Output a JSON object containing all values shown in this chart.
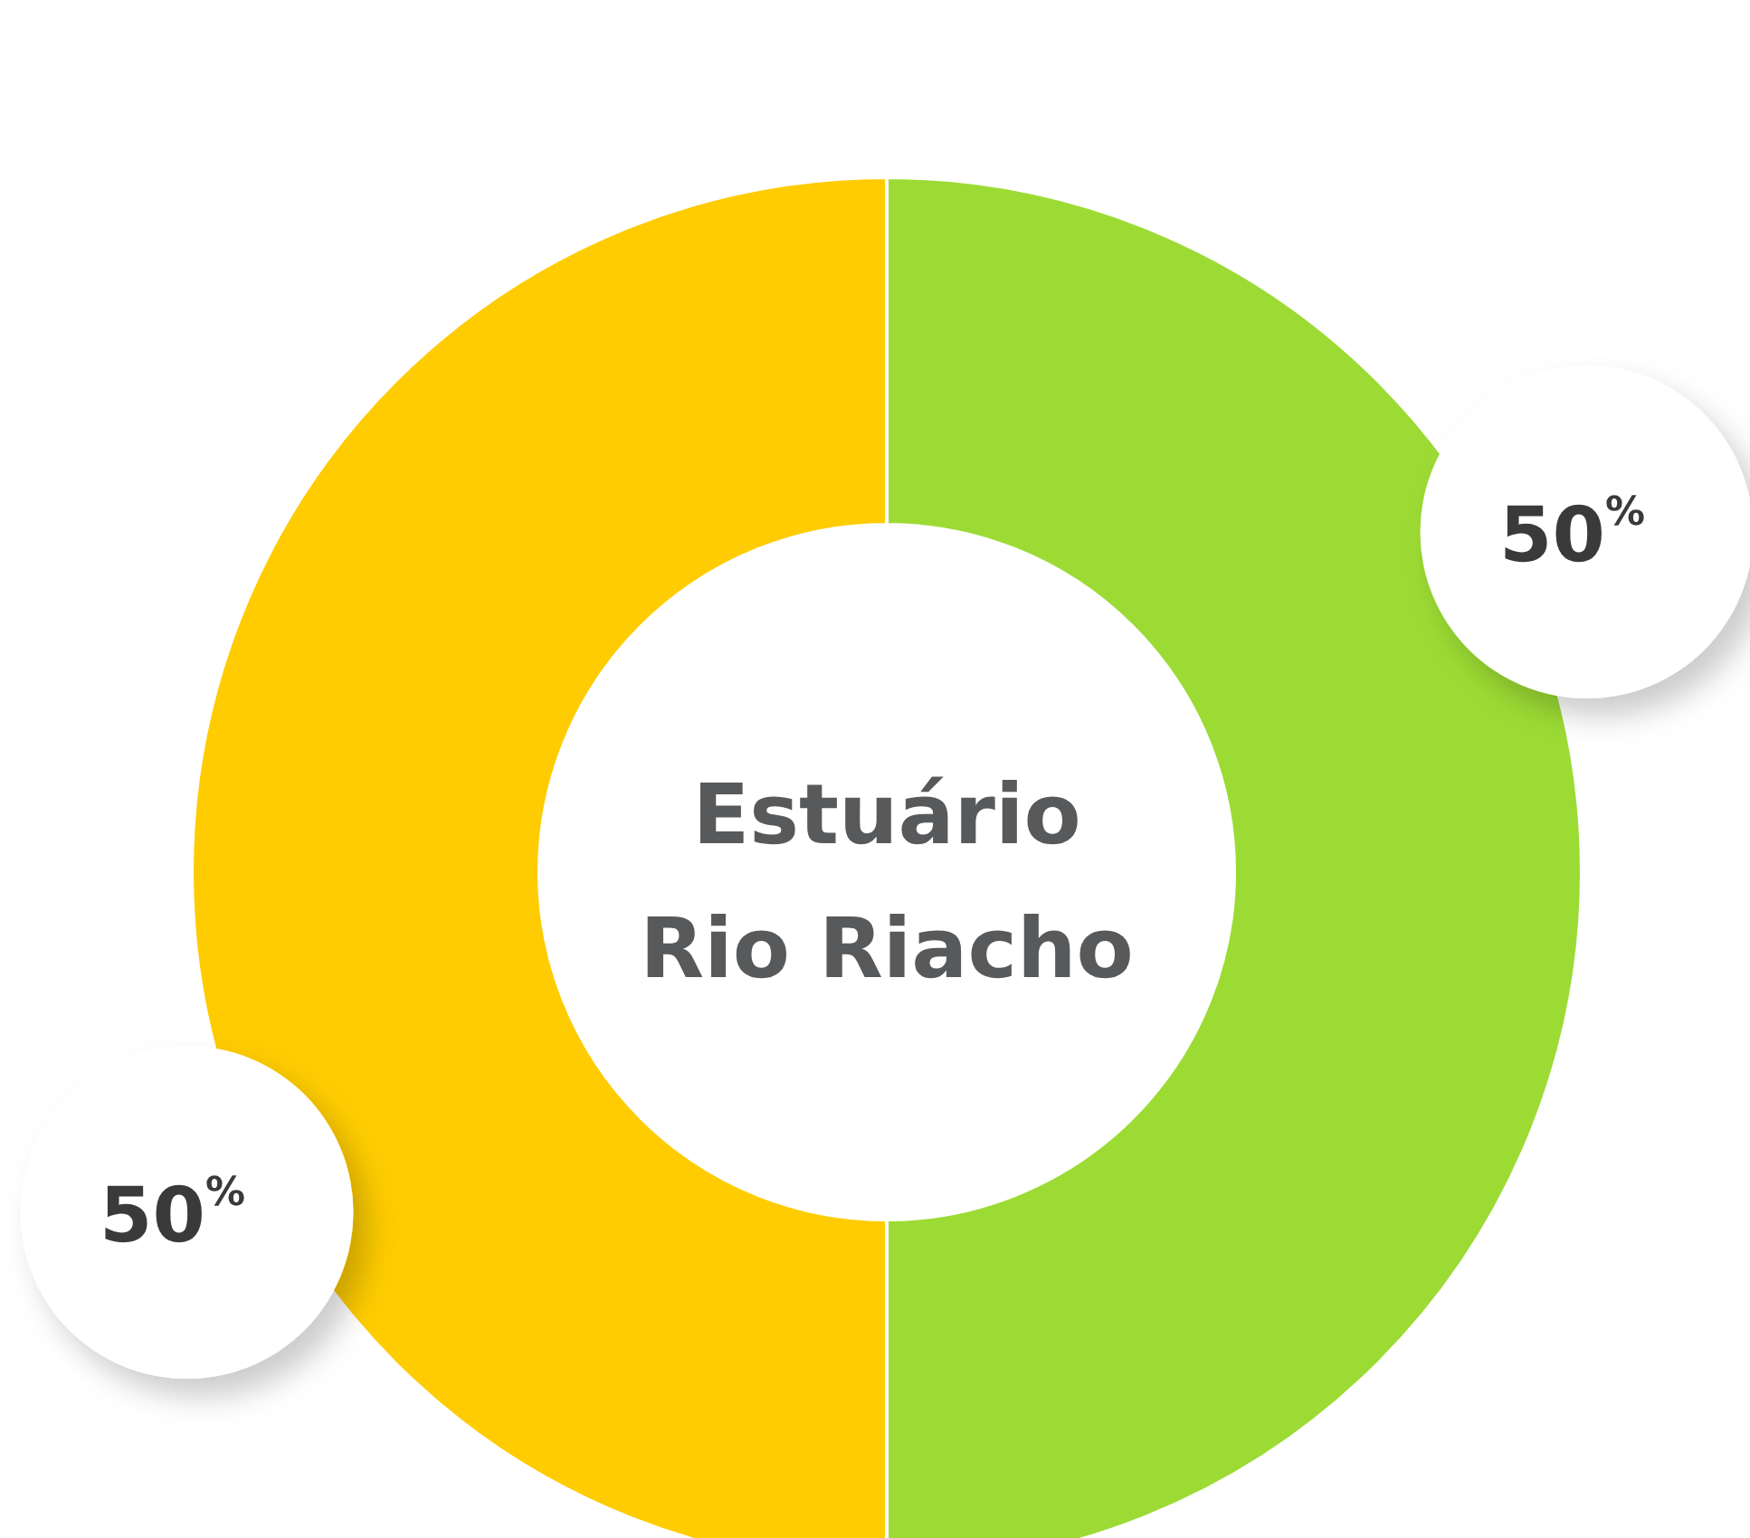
{
  "chart_data": {
    "type": "donut",
    "title": "Estuário Rio Riacho",
    "categories": [
      null,
      null
    ],
    "values": [
      50,
      50
    ],
    "colors": [
      "#9cdb34",
      "#fecc00"
    ],
    "value_labels": [
      "50$^{%}$",
      "50$^{%}$"
    ]
  }
}
